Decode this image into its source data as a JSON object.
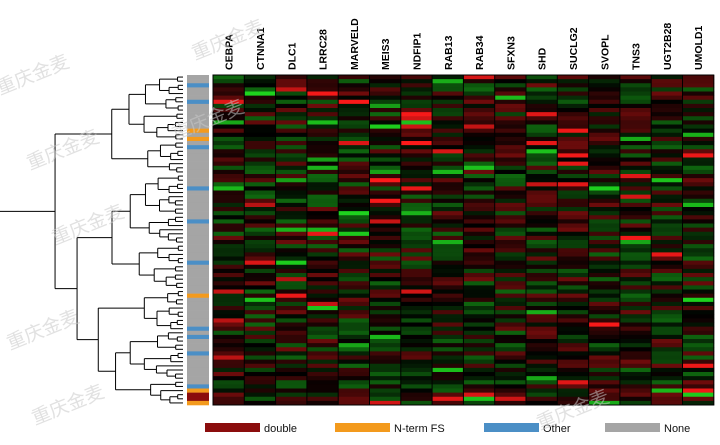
{
  "chart_data": {
    "type": "heatmap",
    "columns": [
      "CEBPA",
      "CTNNA1",
      "DLC1",
      "LRRC28",
      "MARVELD",
      "MEIS3",
      "NDFIP1",
      "RAB13",
      "RAB34",
      "SFXN3",
      "SHD",
      "SUCLG2",
      "SVOPL",
      "TNS3",
      "UGT2B28",
      "UMOLD1"
    ],
    "row_count": 80,
    "color_scale": {
      "low": "#1fd81f",
      "mid": "#000000",
      "high": "#ff1a1a"
    },
    "value_range": [
      -1,
      1
    ],
    "values": [],
    "row_annotation": {
      "categories": [
        "double",
        "N-term FS",
        "Other",
        "None"
      ],
      "colors": {
        "double": "#8b0d0d",
        "N-term FS": "#f39a1d",
        "Other": "#4b8fc6",
        "None": "#a5a5a5"
      },
      "rows": {
        "2": "Other",
        "6": "Other",
        "13": "N-term FS",
        "15": "N-term FS",
        "17": "Other",
        "27": "Other",
        "35": "Other",
        "45": "Other",
        "53": "N-term FS",
        "61": "Other",
        "63": "Other",
        "67": "Other",
        "75": "Other",
        "76": "N-term FS",
        "77": "double",
        "78": "double",
        "79": "N-term FS"
      }
    }
  },
  "legend": {
    "items": [
      {
        "label": "double",
        "color": "#8b0d0d"
      },
      {
        "label": "N-term FS",
        "color": "#f39a1d"
      },
      {
        "label": "Other",
        "color": "#4b8fc6"
      },
      {
        "label": "None",
        "color": "#a5a5a5"
      }
    ]
  },
  "watermark": {
    "text": "重庆金麦"
  }
}
